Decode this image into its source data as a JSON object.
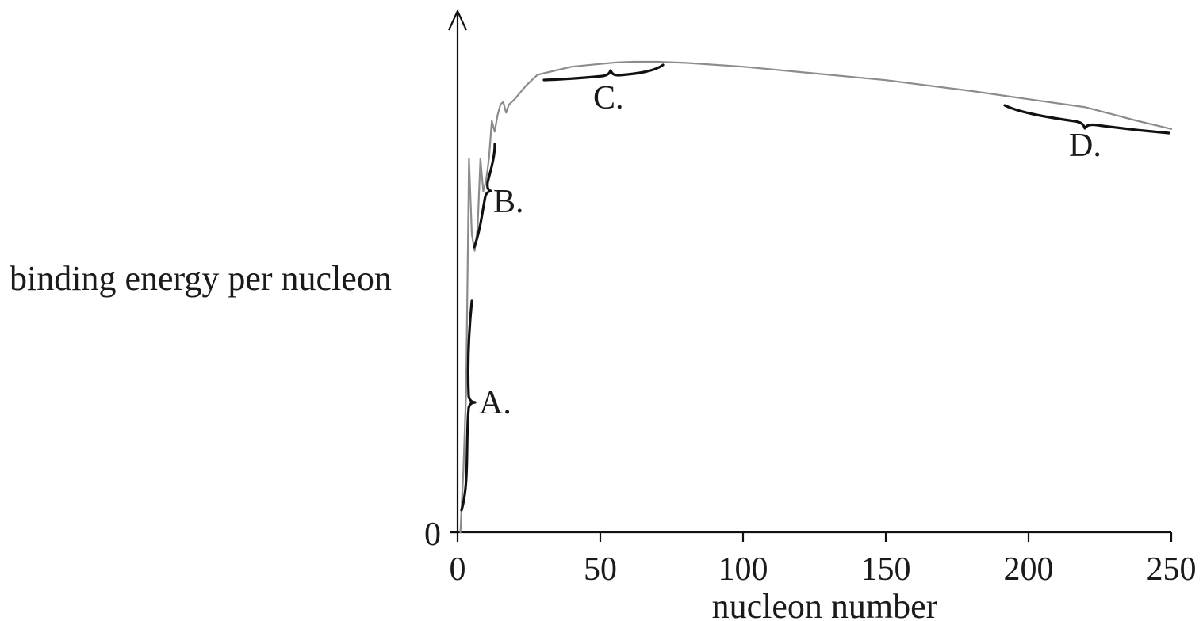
{
  "chart_data": {
    "type": "line",
    "title": "",
    "xlabel": "nucleon number",
    "ylabel": "binding energy per nucleon",
    "xlim": [
      0,
      250
    ],
    "ylim": [
      0,
      9.2
    ],
    "x_ticks": [
      "0",
      "50",
      "100",
      "150",
      "200",
      "250"
    ],
    "y_ticks": [
      "0"
    ],
    "grid": false,
    "legend": "none",
    "curve_color": "#8c8c8c",
    "series": [
      {
        "x": [
          1,
          2,
          3,
          4,
          5,
          6,
          7,
          8,
          9,
          10,
          11,
          12,
          13,
          14,
          15,
          16,
          17,
          18,
          20,
          24,
          28,
          32,
          40,
          50,
          56,
          62,
          70,
          80,
          100,
          120,
          150,
          180,
          200,
          220,
          238,
          250
        ],
        "y": [
          0,
          1.1,
          2.6,
          6.9,
          5.5,
          5.2,
          5.6,
          6.9,
          6.3,
          6.5,
          6.9,
          7.6,
          7.4,
          7.7,
          7.9,
          7.95,
          7.75,
          7.9,
          8.0,
          8.25,
          8.45,
          8.5,
          8.6,
          8.65,
          8.68,
          8.69,
          8.69,
          8.67,
          8.6,
          8.5,
          8.35,
          8.15,
          8.0,
          7.85,
          7.6,
          7.45
        ]
      }
    ],
    "annotations": [
      {
        "label": "A.",
        "x_range": [
          1,
          5
        ]
      },
      {
        "label": "B.",
        "x_range": [
          5,
          12
        ]
      },
      {
        "label": "C.",
        "x_range": [
          30,
          72
        ]
      },
      {
        "label": "D.",
        "x_range": [
          190,
          250
        ]
      }
    ]
  }
}
